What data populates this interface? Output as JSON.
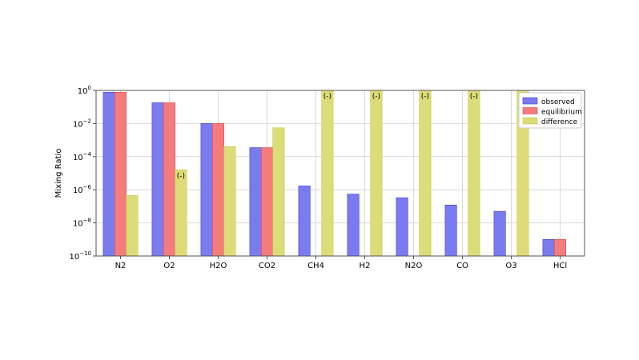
{
  "chart_data": {
    "type": "bar",
    "ylabel": "Mixing Ratio",
    "xlabel": "",
    "y_scale": "log",
    "ylim": [
      1e-10,
      1
    ],
    "y_ticks": [
      {
        "value": 1,
        "base": "10",
        "exp": "0"
      },
      {
        "value": 0.01,
        "base": "10",
        "exp": "−2"
      },
      {
        "value": 0.0001,
        "base": "10",
        "exp": "−4"
      },
      {
        "value": 1e-06,
        "base": "10",
        "exp": "−6"
      },
      {
        "value": 1e-08,
        "base": "10",
        "exp": "−8"
      },
      {
        "value": 1e-10,
        "base": "10",
        "exp": "−10"
      }
    ],
    "grid": true,
    "legend_position": "top-right",
    "categories": [
      "N2",
      "O2",
      "H2O",
      "CO2",
      "CH4",
      "H2",
      "N2O",
      "CO",
      "O3",
      "HCl"
    ],
    "series": [
      {
        "name": "observed",
        "color": "#7b7bf0",
        "edge": "#3f3fd6",
        "values": [
          0.78,
          0.18,
          0.01,
          0.00035,
          1.7e-06,
          5.5e-07,
          3.3e-07,
          1.2e-07,
          5e-08,
          1e-09
        ]
      },
      {
        "name": "equilibrium",
        "color": "#f47c7c",
        "edge": "#e04848",
        "values": [
          0.78,
          0.18,
          0.01,
          0.00035,
          null,
          null,
          null,
          null,
          null,
          1e-09
        ]
      },
      {
        "name": "difference",
        "color": "#dcdc78",
        "edge": "#c8c84a",
        "values": [
          4.5e-07,
          1.6e-05,
          0.0004,
          0.0055,
          1,
          1,
          1,
          1,
          1,
          null
        ],
        "annotations": [
          "",
          "(-)",
          "",
          "",
          "(-)",
          "(-)",
          "(-)",
          "(-)",
          "(-)",
          ""
        ]
      }
    ]
  }
}
